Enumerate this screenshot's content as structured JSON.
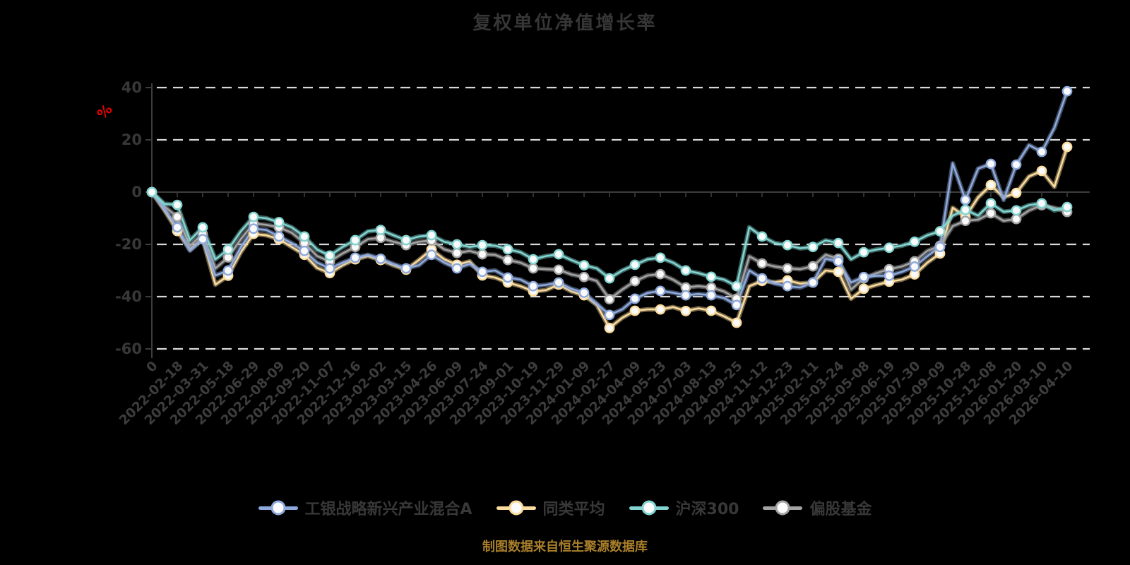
{
  "title": "复权单位净值增长率",
  "caption": "制图数据来自恒生聚源数据库",
  "background": "#000000",
  "y_axis": {
    "unit_label": "%",
    "unit_color": "#e80000",
    "ticks": [
      40,
      20,
      0,
      -20,
      -40,
      -60
    ],
    "tick_color": "#3d3d3d",
    "gridline_color": "#d8d8d8"
  },
  "x_axis": {
    "labels": [
      "0",
      "2022-02-18",
      "2022-03-31",
      "2022-05-18",
      "2022-06-29",
      "2022-08-09",
      "2022-09-20",
      "2022-11-07",
      "2022-12-16",
      "2023-02-02",
      "2023-03-15",
      "2023-04-26",
      "2023-06-09",
      "2023-07-24",
      "2023-09-01",
      "2023-10-19",
      "2023-11-29",
      "2024-01-09",
      "2024-02-27",
      "2024-04-09",
      "2024-05-23",
      "2024-07-03",
      "2024-08-13",
      "2024-09-25",
      "2024-11-12",
      "2024-12-23",
      "2025-02-11",
      "2025-03-24",
      "2025-05-08",
      "2025-06-19",
      "2025-07-30",
      "2025-09-09",
      "2025-10-28",
      "2025-12-08",
      "2026-01-20",
      "2026-03-10",
      "2026-04-10"
    ]
  },
  "chart_data": {
    "type": "line",
    "title": "复权单位净值增长率",
    "xlabel": "",
    "ylabel": "%",
    "ylim": [
      -60,
      40
    ],
    "grid": "horizontal-dashed",
    "legend_position": "bottom",
    "x_labels": [
      "0",
      "2022-02-18",
      "2022-03-31",
      "2022-05-18",
      "2022-06-29",
      "2022-08-09",
      "2022-09-20",
      "2022-11-07",
      "2022-12-16",
      "2023-02-02",
      "2023-03-15",
      "2023-04-26",
      "2023-06-09",
      "2023-07-24",
      "2023-09-01",
      "2023-10-19",
      "2023-11-29",
      "2024-01-09",
      "2024-02-27",
      "2024-04-09",
      "2024-05-23",
      "2024-07-03",
      "2024-08-13",
      "2024-09-25",
      "2024-11-12",
      "2024-12-23",
      "2025-02-11",
      "2025-03-24",
      "2025-05-08",
      "2025-06-19",
      "2025-07-30",
      "2025-09-09",
      "2025-10-28",
      "2025-12-08",
      "2026-01-20",
      "2026-03-10",
      "2026-04-10"
    ],
    "samples_per_label_interval": 2,
    "marker": "white-circle-every-label",
    "series": [
      {
        "name": "工银战略新兴产业混合A",
        "color": "#8EA9DC",
        "values": [
          0,
          -6.5,
          -13.5,
          -22.4,
          -18,
          -31.9,
          -30,
          -21,
          -14,
          -14.5,
          -17,
          -19.5,
          -22.5,
          -27,
          -29.2,
          -27,
          -25.1,
          -24,
          -25.5,
          -27.5,
          -29.2,
          -28,
          -24,
          -27,
          -29.2,
          -27.5,
          -30.5,
          -30,
          -32.7,
          -33.5,
          -36,
          -35.5,
          -34.6,
          -37,
          -38.5,
          -42.7,
          -47,
          -44.9,
          -40.8,
          -38.6,
          -37.8,
          -38.5,
          -39.5,
          -39,
          -39.5,
          -40.5,
          -43.2,
          -30,
          -33,
          -35,
          -36,
          -36.5,
          -34.6,
          -25.5,
          -26.5,
          -34.6,
          -32.5,
          -32,
          -32,
          -30.5,
          -28.5,
          -24.5,
          -21,
          11,
          -3,
          9,
          10.8,
          -3,
          10.5,
          18,
          15.4,
          24.6,
          38.6
        ]
      },
      {
        "name": "同类平均",
        "color": "#FADC9E",
        "values": [
          0,
          -7,
          -14.9,
          -22,
          -18,
          -35.4,
          -32,
          -23,
          -16,
          -16.5,
          -18,
          -21,
          -24,
          -29,
          -31,
          -28,
          -25.7,
          -24.5,
          -26,
          -28,
          -29.7,
          -26,
          -22,
          -25.7,
          -27.8,
          -26.5,
          -31.9,
          -32.7,
          -34.6,
          -36,
          -38,
          -37.5,
          -35.4,
          -38,
          -39.5,
          -43.2,
          -52,
          -48.1,
          -45.4,
          -44.9,
          -44.9,
          -44,
          -45.5,
          -44.5,
          -45.4,
          -47.5,
          -50,
          -36,
          -34,
          -34.5,
          -33.8,
          -35,
          -34.6,
          -30,
          -30.5,
          -40.8,
          -37,
          -35.5,
          -34.3,
          -33.5,
          -31.5,
          -27,
          -23.5,
          -6,
          -9.5,
          -2,
          2.7,
          -2,
          -0.3,
          6,
          8.1,
          2,
          17.3
        ]
      },
      {
        "name": "沪深300",
        "color": "#82D4D0",
        "values": [
          0,
          -4.5,
          -4.9,
          -18.4,
          -13.5,
          -25.7,
          -22,
          -15,
          -9.5,
          -10,
          -11.5,
          -13.5,
          -17,
          -22,
          -24.3,
          -21,
          -18.4,
          -15,
          -14.5,
          -16.5,
          -18.4,
          -17,
          -16.5,
          -19,
          -20,
          -21,
          -20.3,
          -20.5,
          -21.9,
          -23,
          -25.7,
          -24.5,
          -23.8,
          -26,
          -28,
          -29.2,
          -33,
          -30,
          -27.8,
          -25.7,
          -25.1,
          -27,
          -30,
          -31,
          -32.4,
          -33.5,
          -36,
          -13.5,
          -17,
          -19.5,
          -20.3,
          -21.5,
          -21,
          -18.5,
          -19.5,
          -25.7,
          -23,
          -22,
          -21.3,
          -20.5,
          -19,
          -16.5,
          -15,
          -9,
          -6.8,
          -9,
          -4.3,
          -7.5,
          -7,
          -5,
          -4.3,
          -7,
          -5.7
        ]
      },
      {
        "name": "偏股基金",
        "color": "#A3A3A3",
        "values": [
          0,
          -5.5,
          -9.5,
          -20.5,
          -16,
          -29.2,
          -25,
          -18,
          -12,
          -12.5,
          -13.5,
          -15.5,
          -19.5,
          -24.5,
          -26.5,
          -23.5,
          -21,
          -18,
          -17.5,
          -19,
          -20.3,
          -19,
          -18.5,
          -21.9,
          -23.3,
          -22.5,
          -23.8,
          -24,
          -26,
          -27,
          -29.2,
          -29.5,
          -29.7,
          -31.5,
          -32.5,
          -34,
          -41,
          -37.3,
          -34.1,
          -31.9,
          -31.4,
          -33.5,
          -36.5,
          -36,
          -36.5,
          -38,
          -40.8,
          -24.6,
          -27.3,
          -28.5,
          -29.2,
          -29.5,
          -28.4,
          -24,
          -25.5,
          -37.3,
          -33,
          -31,
          -29.5,
          -28.5,
          -26.5,
          -22.5,
          -20.5,
          -13,
          -11,
          -10.5,
          -8.1,
          -11,
          -10.3,
          -7,
          -5,
          -6,
          -7.6
        ]
      }
    ]
  }
}
